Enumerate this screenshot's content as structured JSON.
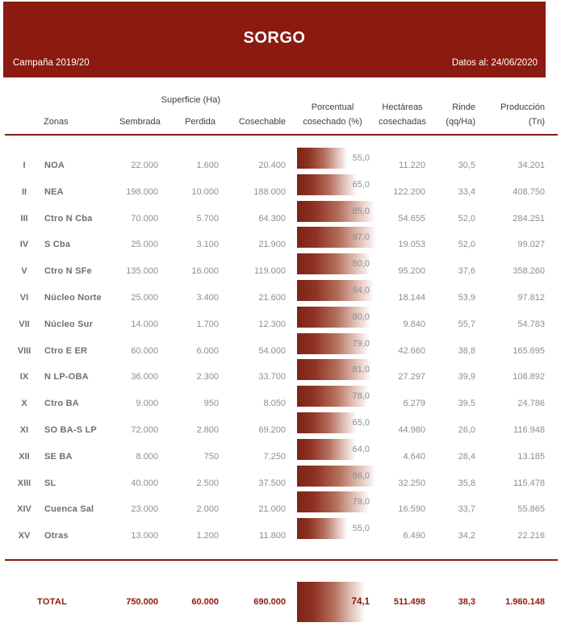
{
  "banner": {
    "title": "SORGO",
    "campaign": "Campaña 2019/20",
    "data_date": "Datos al: 24/06/2020",
    "background_color": "#8B1A10"
  },
  "table": {
    "group_header": {
      "superficie": "Superficie (Ha)"
    },
    "columns": {
      "zonas": "Zonas",
      "sembrada": "Sembrada",
      "perdida": "Perdida",
      "cosechable": "Cosechable",
      "porcentual_line1": "Porcentual",
      "porcentual_line2": "cosechado (%)",
      "hectareas_line1": "Hectáreas",
      "hectareas_line2": "cosechadas",
      "rinde_line1": "Rinde",
      "rinde_line2": "(qq/Ha)",
      "produccion_line1": "Producción",
      "produccion_line2": "(Tn)"
    },
    "rows": [
      {
        "numeral": "I",
        "zona": "NOA",
        "sembrada": "22.000",
        "perdida": "1.600",
        "cosechable": "20.400",
        "porcentual": 55.0,
        "porcentual_label": "55,0",
        "hectareas": "11.220",
        "rinde": "30,5",
        "produccion": "34.201"
      },
      {
        "numeral": "II",
        "zona": "NEA",
        "sembrada": "198.000",
        "perdida": "10.000",
        "cosechable": "188.000",
        "porcentual": 65.0,
        "porcentual_label": "65,0",
        "hectareas": "122.200",
        "rinde": "33,4",
        "produccion": "408.750"
      },
      {
        "numeral": "III",
        "zona": "Ctro N Cba",
        "sembrada": "70.000",
        "perdida": "5.700",
        "cosechable": "64.300",
        "porcentual": 85.0,
        "porcentual_label": "85,0",
        "hectareas": "54.655",
        "rinde": "52,0",
        "produccion": "284.251"
      },
      {
        "numeral": "IV",
        "zona": "S Cba",
        "sembrada": "25.000",
        "perdida": "3.100",
        "cosechable": "21.900",
        "porcentual": 87.0,
        "porcentual_label": "87,0",
        "hectareas": "19.053",
        "rinde": "52,0",
        "produccion": "99.027"
      },
      {
        "numeral": "V",
        "zona": "Ctro N SFe",
        "sembrada": "135.000",
        "perdida": "16.000",
        "cosechable": "119.000",
        "porcentual": 80.0,
        "porcentual_label": "80,0",
        "hectareas": "95.200",
        "rinde": "37,6",
        "produccion": "358.260"
      },
      {
        "numeral": "VI",
        "zona": "Núcleo Norte",
        "sembrada": "25.000",
        "perdida": "3.400",
        "cosechable": "21.600",
        "porcentual": 84.0,
        "porcentual_label": "84,0",
        "hectareas": "18.144",
        "rinde": "53,9",
        "produccion": "97.812"
      },
      {
        "numeral": "VII",
        "zona": "Núcleo Sur",
        "sembrada": "14.000",
        "perdida": "1.700",
        "cosechable": "12.300",
        "porcentual": 80.0,
        "porcentual_label": "80,0",
        "hectareas": "9.840",
        "rinde": "55,7",
        "produccion": "54.783"
      },
      {
        "numeral": "VIII",
        "zona": "Ctro E ER",
        "sembrada": "60.000",
        "perdida": "6.000",
        "cosechable": "54.000",
        "porcentual": 79.0,
        "porcentual_label": "79,0",
        "hectareas": "42.660",
        "rinde": "38,8",
        "produccion": "165.695"
      },
      {
        "numeral": "IX",
        "zona": "N LP-OBA",
        "sembrada": "36.000",
        "perdida": "2.300",
        "cosechable": "33.700",
        "porcentual": 81.0,
        "porcentual_label": "81,0",
        "hectareas": "27.297",
        "rinde": "39,9",
        "produccion": "108.892"
      },
      {
        "numeral": "X",
        "zona": "Ctro BA",
        "sembrada": "9.000",
        "perdida": "950",
        "cosechable": "8.050",
        "porcentual": 78.0,
        "porcentual_label": "78,0",
        "hectareas": "6.279",
        "rinde": "39,5",
        "produccion": "24.786"
      },
      {
        "numeral": "XI",
        "zona": "SO BA-S LP",
        "sembrada": "72.000",
        "perdida": "2.800",
        "cosechable": "69.200",
        "porcentual": 65.0,
        "porcentual_label": "65,0",
        "hectareas": "44.980",
        "rinde": "26,0",
        "produccion": "116.948"
      },
      {
        "numeral": "XII",
        "zona": "SE BA",
        "sembrada": "8.000",
        "perdida": "750",
        "cosechable": "7.250",
        "porcentual": 64.0,
        "porcentual_label": "64,0",
        "hectareas": "4.640",
        "rinde": "28,4",
        "produccion": "13.185"
      },
      {
        "numeral": "XIII",
        "zona": "SL",
        "sembrada": "40.000",
        "perdida": "2.500",
        "cosechable": "37.500",
        "porcentual": 86.0,
        "porcentual_label": "86,0",
        "hectareas": "32.250",
        "rinde": "35,8",
        "produccion": "115.478"
      },
      {
        "numeral": "XIV",
        "zona": "Cuenca Sal",
        "sembrada": "23.000",
        "perdida": "2.000",
        "cosechable": "21.000",
        "porcentual": 79.0,
        "porcentual_label": "79,0",
        "hectareas": "16.590",
        "rinde": "33,7",
        "produccion": "55.865"
      },
      {
        "numeral": "XV",
        "zona": "Otras",
        "sembrada": "13.000",
        "perdida": "1.200",
        "cosechable": "11.800",
        "porcentual": 55.0,
        "porcentual_label": "55,0",
        "hectareas": "6.490",
        "rinde": "34,2",
        "produccion": "22.216"
      }
    ],
    "total": {
      "label": "TOTAL",
      "sembrada": "750.000",
      "perdida": "60.000",
      "cosechable": "690.000",
      "porcentual": 74.1,
      "porcentual_label": "74,1",
      "hectareas": "511.498",
      "rinde": "38,3",
      "produccion": "1.960.148"
    }
  },
  "colors": {
    "accent": "#8B1A10",
    "bar_gradient_start": "#7b2315",
    "row_text": "#8e8e8e",
    "zone_text": "#6f6f6f",
    "header_text": "#404040"
  }
}
